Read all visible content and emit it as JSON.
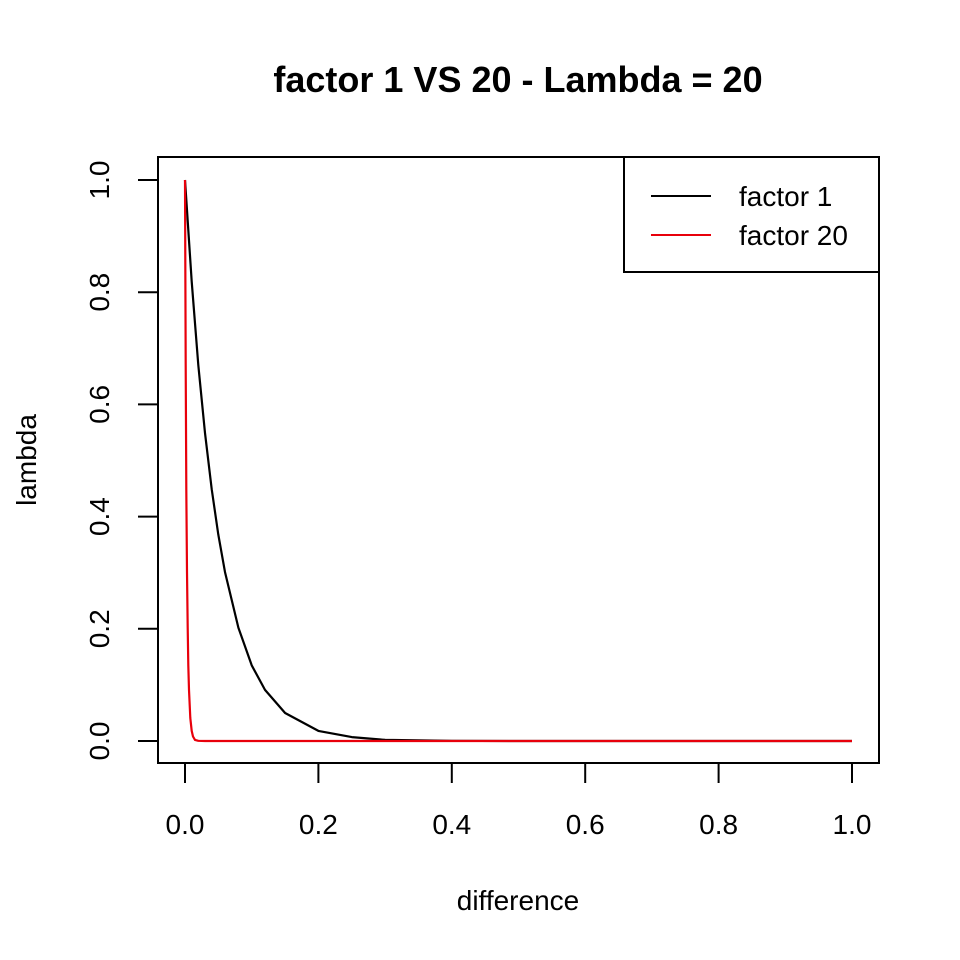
{
  "chart_data": {
    "type": "line",
    "title": "factor 1 VS 20 - Lambda = 20",
    "xlabel": "difference",
    "ylabel": "lambda",
    "xlim": [
      0.0,
      1.0
    ],
    "ylim": [
      0.0,
      1.0
    ],
    "x_ticks": [
      "0.0",
      "0.2",
      "0.4",
      "0.6",
      "0.8",
      "1.0"
    ],
    "y_ticks": [
      "0.0",
      "0.2",
      "0.4",
      "0.6",
      "0.8",
      "1.0"
    ],
    "grid": false,
    "legend_position": "top-right",
    "series": [
      {
        "name": "factor 1",
        "color": "#000000",
        "x": [
          0,
          0.01,
          0.02,
          0.03,
          0.04,
          0.05,
          0.06,
          0.08,
          0.1,
          0.12,
          0.15,
          0.2,
          0.25,
          0.3,
          0.4,
          0.5,
          0.6,
          0.7,
          0.8,
          0.9,
          1.0
        ],
        "y": [
          1.0,
          0.819,
          0.67,
          0.549,
          0.449,
          0.368,
          0.301,
          0.202,
          0.135,
          0.091,
          0.05,
          0.018,
          0.007,
          0.002,
          0.0003,
          0.0,
          0.0,
          0.0,
          0.0,
          0.0,
          0.0
        ]
      },
      {
        "name": "factor 20",
        "color": "#e8000b",
        "x": [
          0,
          0.001,
          0.002,
          0.003,
          0.004,
          0.005,
          0.006,
          0.008,
          0.01,
          0.012,
          0.015,
          0.02,
          0.03,
          0.05,
          0.1,
          0.2,
          0.4,
          0.6,
          0.8,
          1.0
        ],
        "y": [
          1.0,
          0.67,
          0.449,
          0.301,
          0.202,
          0.135,
          0.091,
          0.041,
          0.018,
          0.008,
          0.002,
          0.0003,
          0.0,
          0.0,
          0.0,
          0.0,
          0.0,
          0.0,
          0.0,
          0.0
        ]
      }
    ]
  }
}
